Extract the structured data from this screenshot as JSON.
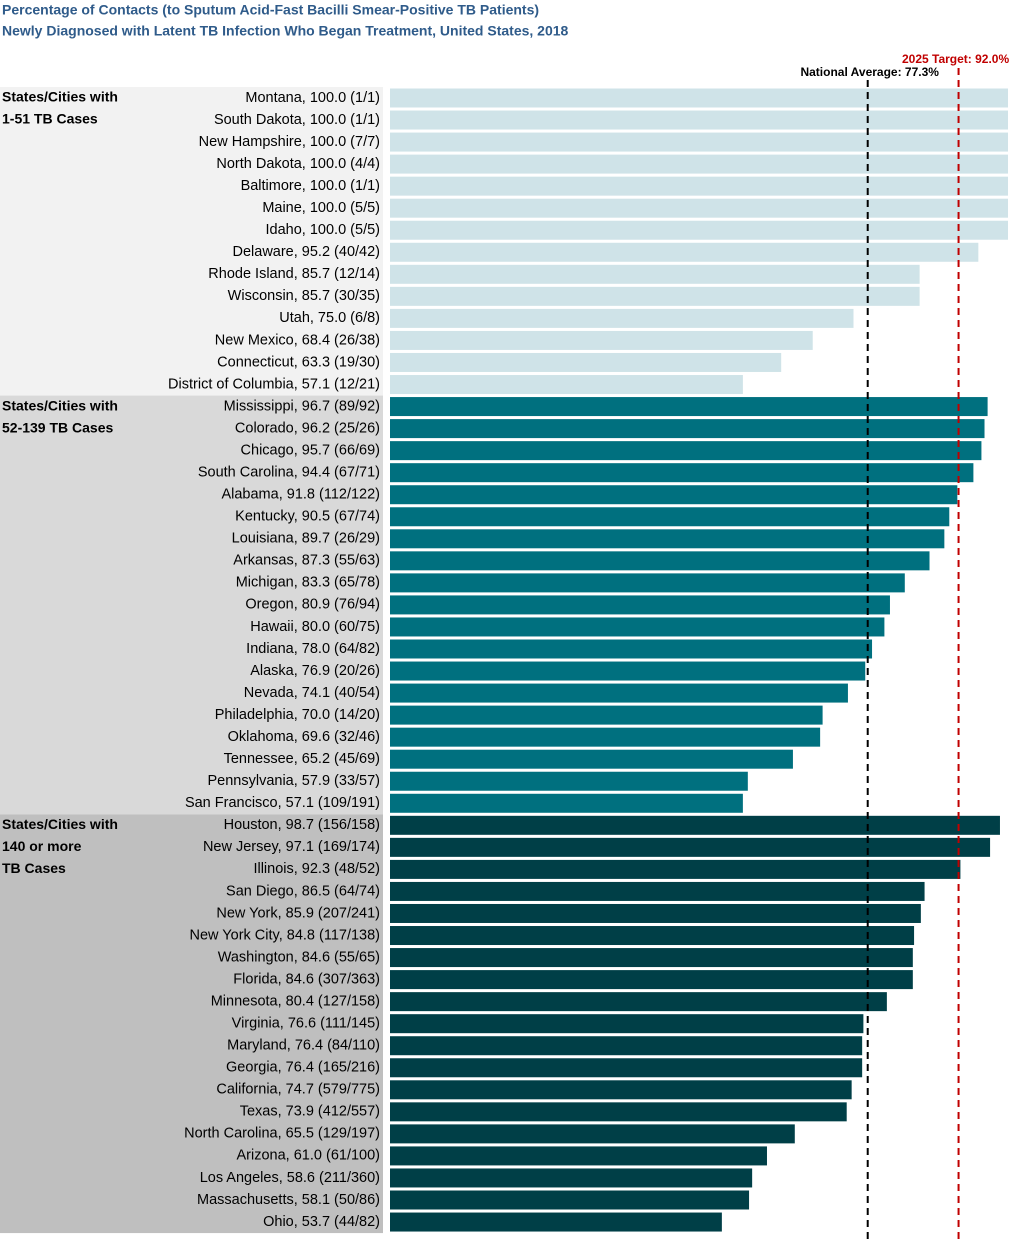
{
  "chart_data": {
    "type": "bar",
    "orientation": "horizontal",
    "title": [
      "Percentage of Contacts (to Sputum Acid-Fast Bacilli Smear-Positive TB Patients)",
      "Newly Diagnosed with Latent TB Infection Who Began Treatment, United States, 2018"
    ],
    "xlim": [
      0,
      100
    ],
    "reference_lines": [
      {
        "label": "National Average: 77.3%",
        "value": 77.3,
        "color": "#000000"
      },
      {
        "label": "2025 Target: 92.0%",
        "value": 92.0,
        "color": "#c00000"
      }
    ],
    "groups": [
      {
        "label": [
          "States/Cities with",
          "1-51 TB Cases"
        ],
        "color": "#cfe3e8",
        "background": "#f2f2f2",
        "categories": [
          "Montana, 100.0 (1/1)",
          "South Dakota, 100.0 (1/1)",
          "New Hampshire, 100.0 (7/7)",
          "North Dakota, 100.0 (4/4)",
          "Baltimore, 100.0 (1/1)",
          "Maine, 100.0 (5/5)",
          "Idaho, 100.0 (5/5)",
          "Delaware, 95.2 (40/42)",
          "Rhode Island, 85.7 (12/14)",
          "Wisconsin, 85.7 (30/35)",
          "Utah, 75.0 (6/8)",
          "New Mexico, 68.4 (26/38)",
          "Connecticut, 63.3 (19/30)",
          "District of Columbia, 57.1 (12/21)"
        ],
        "values": [
          100.0,
          100.0,
          100.0,
          100.0,
          100.0,
          100.0,
          100.0,
          95.2,
          85.7,
          85.7,
          75.0,
          68.4,
          63.3,
          57.1
        ]
      },
      {
        "label": [
          "States/Cities with",
          "52-139 TB Cases"
        ],
        "color": "#00707f",
        "background": "#d9d9d9",
        "categories": [
          "Mississippi, 96.7 (89/92)",
          "Colorado, 96.2 (25/26)",
          "Chicago, 95.7 (66/69)",
          "South Carolina, 94.4 (67/71)",
          "Alabama, 91.8 (112/122)",
          "Kentucky, 90.5 (67/74)",
          "Louisiana, 89.7 (26/29)",
          "Arkansas, 87.3 (55/63)",
          "Michigan, 83.3 (65/78)",
          "Oregon, 80.9 (76/94)",
          "Hawaii, 80.0 (60/75)",
          "Indiana, 78.0 (64/82)",
          "Alaska, 76.9 (20/26)",
          "Nevada, 74.1 (40/54)",
          "Philadelphia, 70.0 (14/20)",
          "Oklahoma, 69.6 (32/46)",
          "Tennessee, 65.2 (45/69)",
          "Pennsylvania, 57.9 (33/57)",
          "San Francisco, 57.1 (109/191)"
        ],
        "values": [
          96.7,
          96.2,
          95.7,
          94.4,
          91.8,
          90.5,
          89.7,
          87.3,
          83.3,
          80.9,
          80.0,
          78.0,
          76.9,
          74.1,
          70.0,
          69.6,
          65.2,
          57.9,
          57.1
        ]
      },
      {
        "label": [
          "States/Cities with",
          "140 or more",
          "TB Cases"
        ],
        "color": "#003f47",
        "background": "#bfbfbf",
        "categories": [
          "Houston, 98.7 (156/158)",
          "New Jersey, 97.1 (169/174)",
          "Illinois, 92.3 (48/52)",
          "San Diego, 86.5 (64/74)",
          "New York, 85.9 (207/241)",
          "New York City, 84.8 (117/138)",
          "Washington, 84.6 (55/65)",
          "Florida, 84.6 (307/363)",
          "Minnesota, 80.4 (127/158)",
          "Virginia, 76.6 (111/145)",
          "Maryland, 76.4 (84/110)",
          "Georgia, 76.4 (165/216)",
          "California, 74.7 (579/775)",
          "Texas, 73.9 (412/557)",
          "North Carolina, 65.5 (129/197)",
          "Arizona, 61.0 (61/100)",
          "Los Angeles, 58.6 (211/360)",
          "Massachusetts, 58.1 (50/86)",
          "Ohio, 53.7 (44/82)"
        ],
        "values": [
          98.7,
          97.1,
          92.3,
          86.5,
          85.9,
          84.8,
          84.6,
          84.6,
          80.4,
          76.6,
          76.4,
          76.4,
          74.7,
          73.9,
          65.5,
          61.0,
          58.6,
          58.1,
          53.7
        ]
      }
    ]
  }
}
